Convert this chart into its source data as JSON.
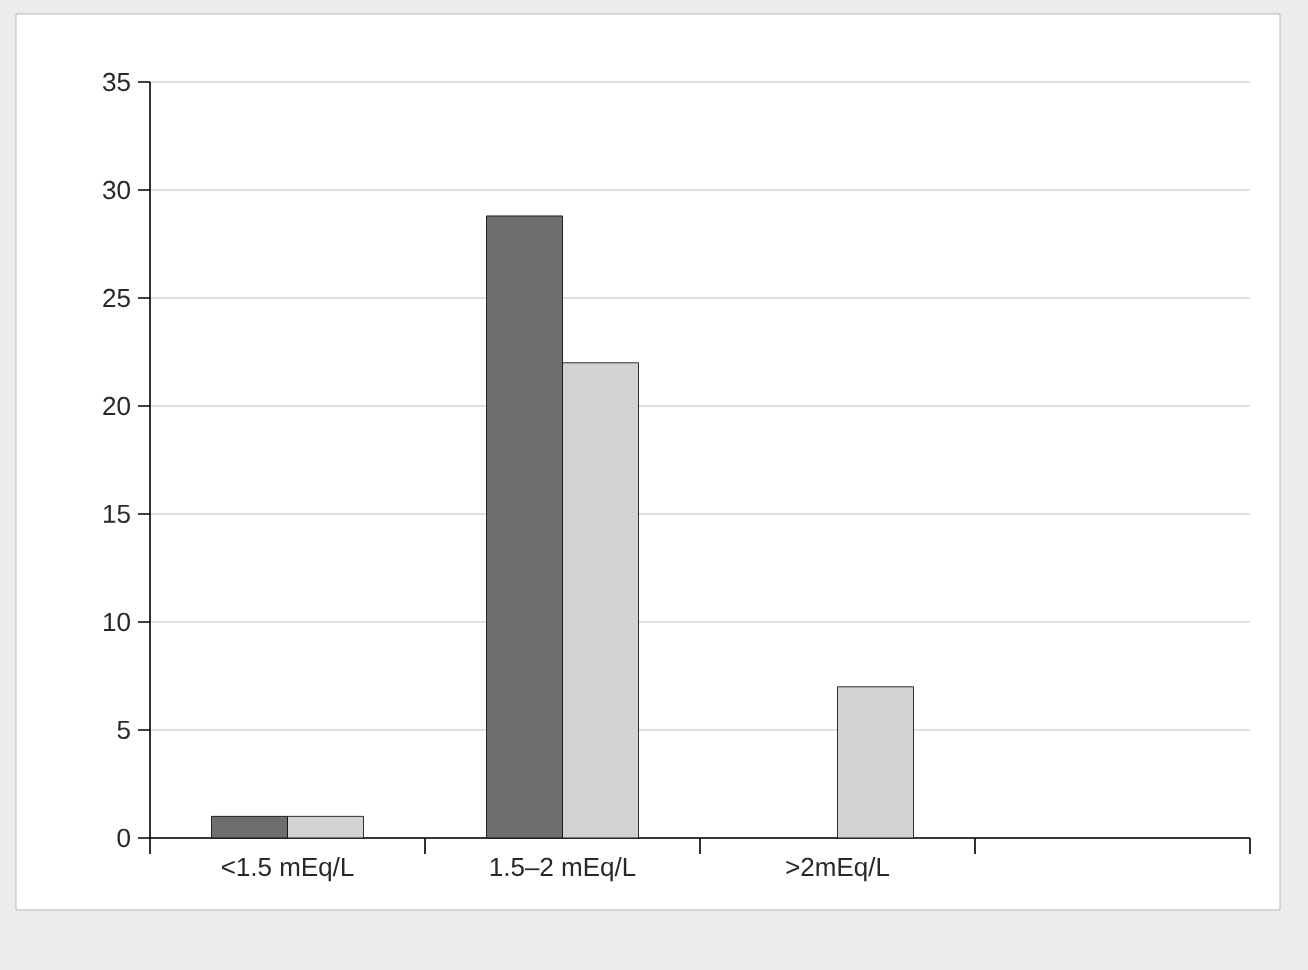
{
  "chart_data": {
    "type": "bar",
    "categories": [
      "<1.5 mEq/L",
      "1.5–2 mEq/L",
      ">2mEq/L",
      null
    ],
    "series": [
      {
        "color": "#6e6e6e",
        "values": [
          1,
          28.8,
          null,
          null
        ]
      },
      {
        "color": "#d2d2d2",
        "values": [
          1,
          22,
          7,
          null
        ]
      }
    ],
    "ylim": [
      0,
      35
    ],
    "yticks": [
      0,
      5,
      10,
      15,
      20,
      25,
      30,
      35
    ],
    "grid": "y"
  }
}
